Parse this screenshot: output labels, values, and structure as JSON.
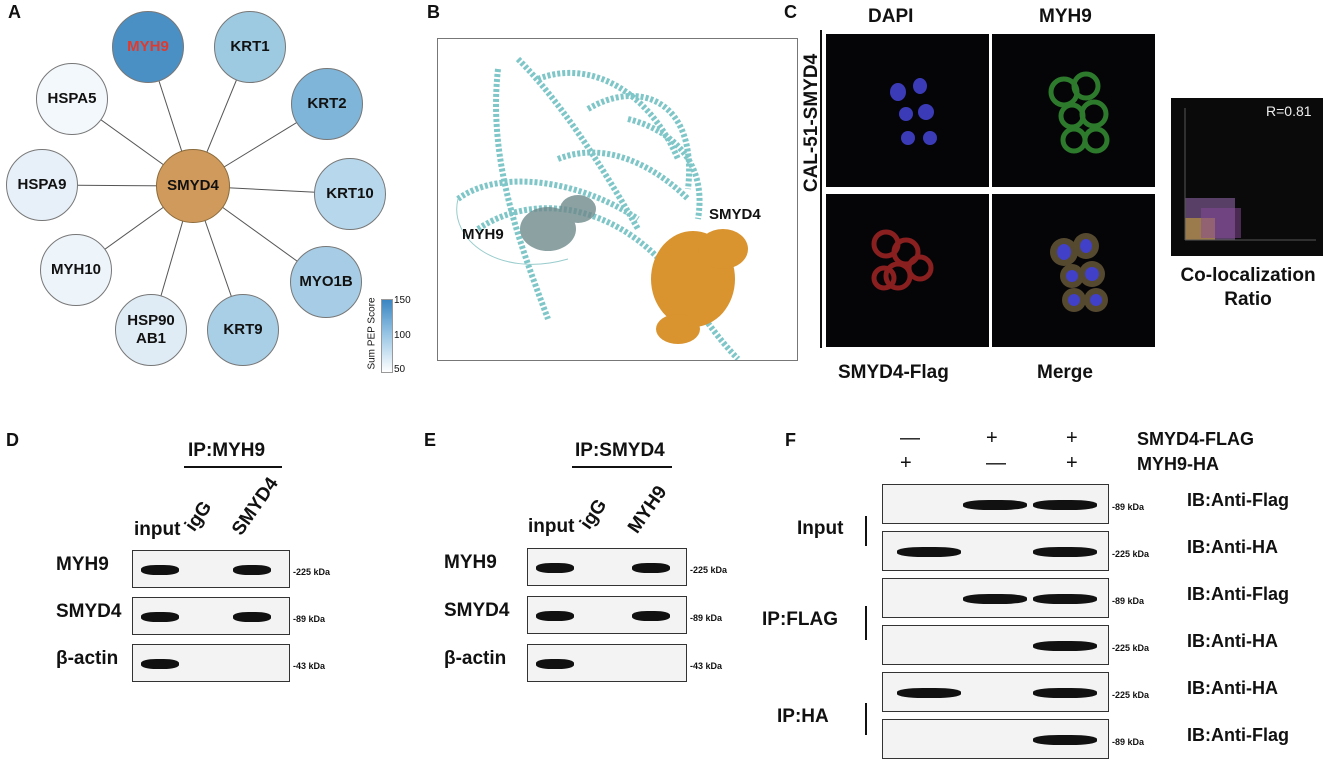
{
  "panels": {
    "A": {
      "label": "A",
      "center": "SMYD4",
      "nodes": [
        {
          "name": "MYH9",
          "color": "#4b90c4",
          "text_color": "#e03a2f"
        },
        {
          "name": "KRT1",
          "color": "#9ecae1"
        },
        {
          "name": "KRT2",
          "color": "#7fb5d8"
        },
        {
          "name": "KRT10",
          "color": "#b7d7ec"
        },
        {
          "name": "MYO1B",
          "color": "#a6cde5"
        },
        {
          "name": "KRT9",
          "color": "#a9cfe6"
        },
        {
          "name": "HSP90\nAB1",
          "color": "#dfecf6"
        },
        {
          "name": "MYH10",
          "color": "#edf4fa"
        },
        {
          "name": "HSPA9",
          "color": "#e7f0f8"
        },
        {
          "name": "HSPA5",
          "color": "#f3f8fc"
        }
      ],
      "colorbar": {
        "title": "Sum PEP Score",
        "ticks": [
          "150",
          "100",
          "50"
        ]
      }
    },
    "B": {
      "label": "B",
      "labels": [
        "MYH9",
        "SMYD4"
      ]
    },
    "C": {
      "label": "C",
      "row_label": "CAL-51-SMYD4",
      "top_labels": [
        "DAPI",
        "MYH9"
      ],
      "bottom_labels": [
        "SMYD4-Flag",
        "Merge"
      ],
      "coloc_value": "R=0.81",
      "coloc_label": "Co-localization\nRatio"
    },
    "D": {
      "label": "D",
      "ip": "IP:MYH9",
      "lanes": [
        "input",
        "igG",
        "SMYD4"
      ],
      "rows": [
        {
          "name": "MYH9",
          "kda": "-225 kDa",
          "bands": [
            1,
            0,
            1
          ]
        },
        {
          "name": "SMYD4",
          "kda": "-89 kDa",
          "bands": [
            1,
            0,
            1
          ]
        },
        {
          "name": "β-actin",
          "kda": "-43 kDa",
          "bands": [
            1,
            0,
            0
          ]
        }
      ]
    },
    "E": {
      "label": "E",
      "ip": "IP:SMYD4",
      "lanes": [
        "input",
        "igG",
        "MYH9"
      ],
      "rows": [
        {
          "name": "MYH9",
          "kda": "-225 kDa",
          "bands": [
            1,
            0,
            1
          ]
        },
        {
          "name": "SMYD4",
          "kda": "-89 kDa",
          "bands": [
            1,
            0,
            1
          ]
        },
        {
          "name": "β-actin",
          "kda": "-43 kDa",
          "bands": [
            1,
            0,
            0
          ]
        }
      ]
    },
    "F": {
      "label": "F",
      "conditions": [
        {
          "name": "SMYD4-FLAG",
          "marks": [
            "—",
            "+",
            "+"
          ]
        },
        {
          "name": "MYH9-HA",
          "marks": [
            "+",
            "—",
            "+"
          ]
        }
      ],
      "groups": [
        "Input",
        "IP:FLAG",
        "IP:HA"
      ],
      "rows": [
        {
          "ib": "IB:Anti-Flag",
          "kda": "-89 kDa",
          "bands": [
            0,
            1,
            1
          ]
        },
        {
          "ib": "IB:Anti-HA",
          "kda": "-225 kDa",
          "bands": [
            1,
            0,
            1
          ]
        },
        {
          "ib": "IB:Anti-Flag",
          "kda": "-89 kDa",
          "bands": [
            0,
            1,
            1
          ]
        },
        {
          "ib": "IB:Anti-HA",
          "kda": "-225 kDa",
          "bands": [
            0,
            0,
            1
          ]
        },
        {
          "ib": "IB:Anti-HA",
          "kda": "-225 kDa",
          "bands": [
            1,
            0,
            1
          ]
        },
        {
          "ib": "IB:Anti-Flag",
          "kda": "-89 kDa",
          "bands": [
            0,
            0,
            1
          ]
        }
      ]
    }
  }
}
